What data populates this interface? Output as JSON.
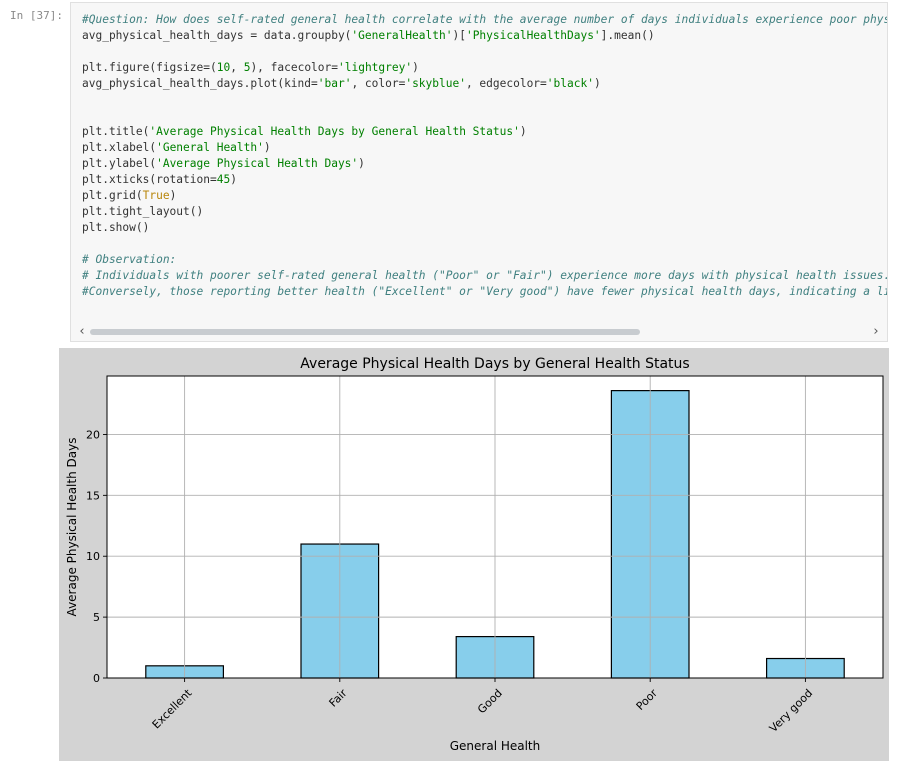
{
  "cell": {
    "prompt": "In [37]:",
    "code_lines": [
      [
        {
          "t": "comment",
          "v": "#Question: How does self-rated general health correlate with the average number of days individuals experience poor physi"
        }
      ],
      [
        {
          "t": "plain",
          "v": "avg_physical_health_days = data.groupby("
        },
        {
          "t": "string",
          "v": "'GeneralHealth'"
        },
        {
          "t": "plain",
          "v": ")["
        },
        {
          "t": "string",
          "v": "'PhysicalHealthDays'"
        },
        {
          "t": "plain",
          "v": "].mean()"
        }
      ],
      [],
      [
        {
          "t": "plain",
          "v": "plt.figure(figsize=("
        },
        {
          "t": "number",
          "v": "10"
        },
        {
          "t": "plain",
          "v": ", "
        },
        {
          "t": "number",
          "v": "5"
        },
        {
          "t": "plain",
          "v": "), facecolor="
        },
        {
          "t": "string",
          "v": "'lightgrey'"
        },
        {
          "t": "plain",
          "v": ")"
        }
      ],
      [
        {
          "t": "plain",
          "v": "avg_physical_health_days.plot(kind="
        },
        {
          "t": "string",
          "v": "'bar'"
        },
        {
          "t": "plain",
          "v": ", color="
        },
        {
          "t": "string",
          "v": "'skyblue'"
        },
        {
          "t": "plain",
          "v": ", edgecolor="
        },
        {
          "t": "string",
          "v": "'black'"
        },
        {
          "t": "plain",
          "v": ")"
        }
      ],
      [],
      [],
      [
        {
          "t": "plain",
          "v": "plt.title("
        },
        {
          "t": "string",
          "v": "'Average Physical Health Days by General Health Status'"
        },
        {
          "t": "plain",
          "v": ")"
        }
      ],
      [
        {
          "t": "plain",
          "v": "plt.xlabel("
        },
        {
          "t": "string",
          "v": "'General Health'"
        },
        {
          "t": "plain",
          "v": ")"
        }
      ],
      [
        {
          "t": "plain",
          "v": "plt.ylabel("
        },
        {
          "t": "string",
          "v": "'Average Physical Health Days'"
        },
        {
          "t": "plain",
          "v": ")"
        }
      ],
      [
        {
          "t": "plain",
          "v": "plt.xticks(rotation="
        },
        {
          "t": "number",
          "v": "45"
        },
        {
          "t": "plain",
          "v": ")"
        }
      ],
      [
        {
          "t": "plain",
          "v": "plt.grid("
        },
        {
          "t": "keyword",
          "v": "True"
        },
        {
          "t": "plain",
          "v": ")"
        }
      ],
      [
        {
          "t": "plain",
          "v": "plt.tight_layout()"
        }
      ],
      [
        {
          "t": "plain",
          "v": "plt.show()"
        }
      ],
      [],
      [
        {
          "t": "comment",
          "v": "# Observation:"
        }
      ],
      [
        {
          "t": "comment",
          "v": "# Individuals with poorer self-rated general health (\"Poor\" or \"Fair\") experience more days with physical health issues."
        }
      ],
      [
        {
          "t": "comment",
          "v": "#Conversely, those reporting better health (\"Excellent\" or \"Very good\") have fewer physical health days, indicating a lir"
        }
      ]
    ],
    "scroll_left": "‹",
    "scroll_right": "›"
  },
  "chart_data": {
    "type": "bar",
    "title": "Average Physical Health Days by General Health Status",
    "xlabel": "General Health",
    "ylabel": "Average Physical Health Days",
    "categories": [
      "Excellent",
      "Fair",
      "Good",
      "Poor",
      "Very good"
    ],
    "values": [
      1.0,
      11.0,
      3.4,
      23.6,
      1.6
    ],
    "ylim": [
      0,
      24.8
    ],
    "yticks": [
      0,
      5,
      10,
      15,
      20
    ],
    "grid": true,
    "xtick_rotation": 45,
    "bar_color": "#87ceeb",
    "edge_color": "#000000",
    "facecolor": "#d3d3d3",
    "axes_color": "#ffffff"
  }
}
